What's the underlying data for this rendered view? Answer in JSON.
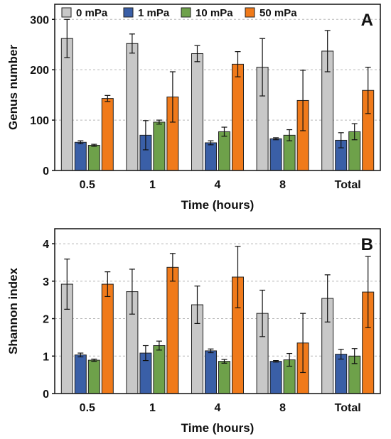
{
  "chart_data": [
    {
      "type": "bar",
      "panel_label": "A",
      "xlabel": "Time (hours)",
      "ylabel": "Genus number",
      "categories": [
        "0.5",
        "1",
        "4",
        "8",
        "Total"
      ],
      "ylim": [
        0,
        330
      ],
      "yticks": [
        0,
        100,
        200,
        300
      ],
      "grid": "horizontal dashed",
      "legend_position": "top",
      "series": [
        {
          "name": "0 mPa",
          "color": "#c8c8c8",
          "values": [
            262,
            252,
            232,
            205,
            237
          ],
          "errors": [
            38,
            19,
            16,
            57,
            41
          ]
        },
        {
          "name": "1 mPa",
          "color": "#3a5fa7",
          "values": [
            56,
            70,
            55,
            63,
            60
          ],
          "errors": [
            3,
            29,
            4,
            2,
            15
          ]
        },
        {
          "name": "10 mPa",
          "color": "#6ea14a",
          "values": [
            50,
            96,
            77,
            70,
            77
          ],
          "errors": [
            2,
            4,
            9,
            11,
            16
          ]
        },
        {
          "name": "50 mPa",
          "color": "#f07a1a",
          "values": [
            143,
            146,
            211,
            139,
            159
          ],
          "errors": [
            6,
            50,
            25,
            60,
            46
          ]
        }
      ]
    },
    {
      "type": "bar",
      "panel_label": "B",
      "xlabel": "Time (hours)",
      "ylabel": "Shannon index",
      "categories": [
        "0.5",
        "1",
        "4",
        "8",
        "Total"
      ],
      "ylim": [
        0,
        4.4
      ],
      "yticks": [
        0,
        1,
        2,
        3,
        4
      ],
      "grid": "horizontal dashed",
      "series": [
        {
          "name": "0 mPa",
          "color": "#c8c8c8",
          "values": [
            2.92,
            2.72,
            2.37,
            2.14,
            2.54
          ],
          "errors": [
            0.67,
            0.6,
            0.5,
            0.62,
            0.63
          ]
        },
        {
          "name": "1 mPa",
          "color": "#3a5fa7",
          "values": [
            1.03,
            1.08,
            1.14,
            0.86,
            1.05
          ],
          "errors": [
            0.05,
            0.2,
            0.05,
            0.02,
            0.13
          ]
        },
        {
          "name": "10 mPa",
          "color": "#6ea14a",
          "values": [
            0.89,
            1.28,
            0.86,
            0.9,
            1.0
          ],
          "errors": [
            0.03,
            0.12,
            0.05,
            0.17,
            0.2
          ]
        },
        {
          "name": "50 mPa",
          "color": "#f07a1a",
          "values": [
            2.92,
            3.37,
            3.11,
            1.35,
            2.71
          ],
          "errors": [
            0.33,
            0.37,
            0.82,
            0.79,
            0.95
          ]
        }
      ]
    }
  ]
}
